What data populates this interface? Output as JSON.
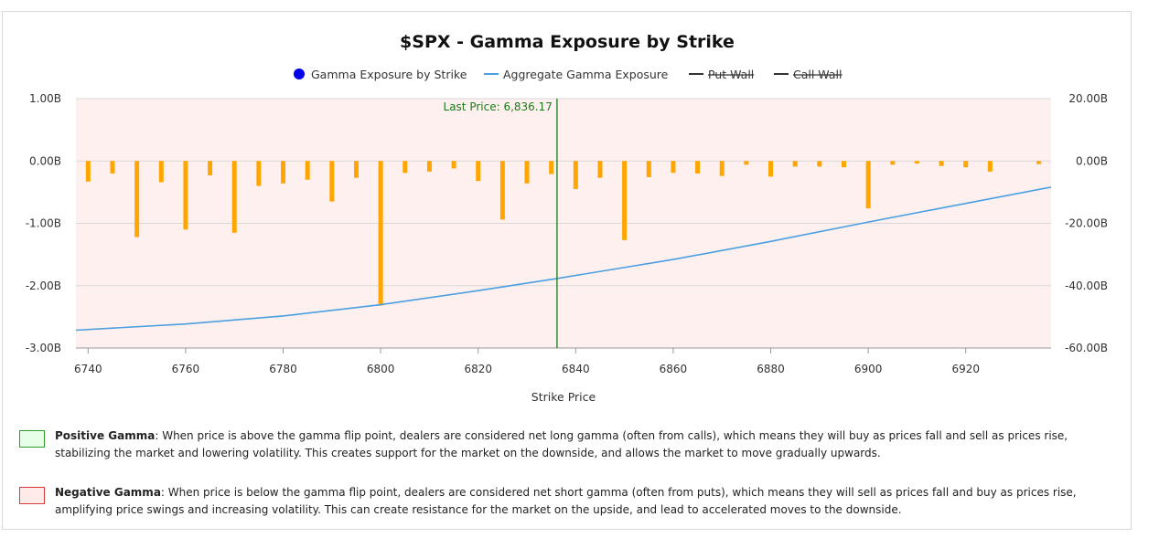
{
  "chart_data": {
    "type": "bar",
    "title": "$SPX - Gamma Exposure by Strike",
    "xlabel": "Strike Price",
    "xlim": [
      6737.5,
      6937.5
    ],
    "xticks": [
      "6740",
      "6760",
      "6780",
      "6800",
      "6820",
      "6840",
      "6860",
      "6880",
      "6900",
      "6920"
    ],
    "y_left": {
      "ylim": [
        -3.0,
        1.0
      ],
      "ticks": [
        "1.00B",
        "0.00B",
        "-1.00B",
        "-2.00B",
        "-3.00B"
      ]
    },
    "y_right": {
      "ylim": [
        -60.0,
        20.0
      ],
      "ticks": [
        "20.00B",
        "0.00B",
        "-20.00B",
        "-40.00B",
        "-60.00B"
      ]
    },
    "legend": {
      "position": "top-center",
      "items": [
        {
          "label": "Gamma Exposure by Strike",
          "symbol": "dot",
          "color": "#0000ee",
          "hidden": false
        },
        {
          "label": "Aggregate Gamma Exposure",
          "symbol": "line",
          "color": "#4a9fe0",
          "hidden": false
        },
        {
          "label": "Put Wall",
          "symbol": "line",
          "color": "#333333",
          "hidden": true
        },
        {
          "label": "Call Wall",
          "symbol": "line",
          "color": "#333333",
          "hidden": true
        }
      ]
    },
    "bars": {
      "name": "Gamma Exposure by Strike",
      "color": "#ffa500",
      "unit": "B",
      "x": [
        6740,
        6745,
        6750,
        6755,
        6760,
        6765,
        6770,
        6775,
        6780,
        6785,
        6790,
        6795,
        6800,
        6805,
        6810,
        6815,
        6820,
        6825,
        6830,
        6835,
        6840,
        6845,
        6850,
        6855,
        6860,
        6865,
        6870,
        6875,
        6880,
        6885,
        6890,
        6895,
        6900,
        6905,
        6910,
        6915,
        6920,
        6925,
        6935
      ],
      "values": [
        -0.33,
        -0.2,
        -1.22,
        -0.34,
        -1.1,
        -0.23,
        -1.15,
        -0.4,
        -0.36,
        -0.3,
        -0.65,
        -0.27,
        -2.32,
        -0.19,
        -0.17,
        -0.12,
        -0.32,
        -0.94,
        -0.36,
        -0.21,
        -0.45,
        -0.27,
        -1.27,
        -0.26,
        -0.19,
        -0.2,
        -0.24,
        -0.06,
        -0.25,
        -0.09,
        -0.09,
        -0.1,
        -0.76,
        -0.06,
        -0.04,
        -0.08,
        -0.1,
        -0.17,
        -0.05
      ]
    },
    "aggregate": {
      "name": "Aggregate Gamma Exposure",
      "color": "#4a9fe0",
      "axis": "right",
      "x": [
        6737.5,
        6760,
        6780,
        6800,
        6820,
        6836.17,
        6860,
        6880,
        6900,
        6920,
        6937.5
      ],
      "values": [
        -54.3,
        -52.3,
        -49.7,
        -46.1,
        -41.6,
        -37.7,
        -31.6,
        -25.8,
        -19.6,
        -13.6,
        -8.4
      ]
    },
    "last_price": {
      "label": "Last Price: 6,836.17",
      "value": 6836.17,
      "color": "#1a7a1a"
    },
    "grid": true,
    "background": "#fff0f0"
  },
  "explanations": [
    {
      "title": "Positive Gamma",
      "text": ": When price is above the gamma flip point, dealers are considered net long gamma (often from calls), which means they will buy as prices fall and sell as prices rise, stabilizing the market and lowering volatility. This creates support for the market on the downside, and allows the market to move gradually upwards.",
      "swatch_fill": "#e6ffe6",
      "swatch_border": "#2e9b2e"
    },
    {
      "title": "Negative Gamma",
      "text": ": When price is below the gamma flip point, dealers are considered net short gamma (often from puts), which means they will sell as prices fall and buy as prices rise, amplifying price swings and increasing volatility. This can create resistance for the market on the upside, and lead to accelerated moves to the downside.",
      "swatch_fill": "#ffeaea",
      "swatch_border": "#d63a3a"
    }
  ]
}
